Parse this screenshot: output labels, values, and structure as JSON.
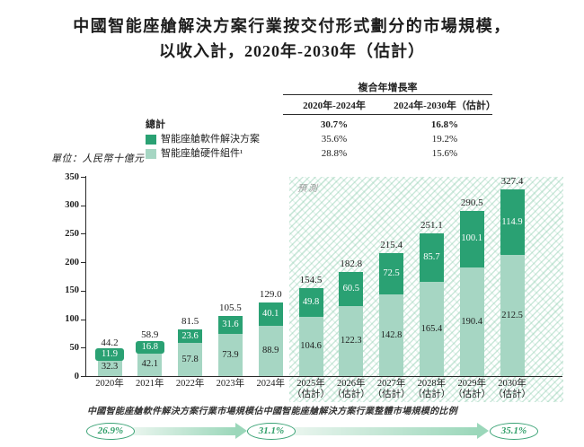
{
  "title": {
    "line1": "中國智能座艙解決方案行業按交付形式劃分的市場規模，",
    "line2": "以收入計，2020年-2030年（估計）"
  },
  "unit_label": "單位：人民幣十億元",
  "cagr_table": {
    "title": "複合年增長率",
    "columns": [
      "2020年-2024年",
      "2024年-2030年（估計）"
    ],
    "rows": [
      {
        "label": "總計",
        "swatch": null,
        "bold": true,
        "values": [
          "30.7%",
          "16.8%"
        ]
      },
      {
        "label": "智能座艙軟件解決方案",
        "swatch": "software",
        "bold": false,
        "values": [
          "35.6%",
          "19.2%"
        ]
      },
      {
        "label": "智能座艙硬件組件¹",
        "swatch": "hardware",
        "bold": false,
        "values": [
          "28.8%",
          "15.6%"
        ]
      }
    ]
  },
  "chart_data": {
    "type": "bar",
    "stacked": true,
    "title": "中國智能座艙解決方案行業按交付形式劃分的市場規模，以收入計，2020年-2030年（估計）",
    "ylabel": "人民幣十億元",
    "ylim": [
      0,
      350
    ],
    "yticks": [
      0,
      50,
      100,
      150,
      200,
      250,
      300,
      350
    ],
    "grid": false,
    "legend_position": "top-left",
    "categories": [
      "2020年",
      "2021年",
      "2022年",
      "2023年",
      "2024年",
      "2025年",
      "2026年",
      "2027年",
      "2028年",
      "2029年",
      "2030年"
    ],
    "estimate_suffix": "（估計）",
    "estimate_from_index": 5,
    "forecast_label": "預測",
    "total_legend_label": "總計",
    "series": [
      {
        "name": "智能座艙軟件解決方案",
        "color_key": "software",
        "values": [
          11.9,
          16.8,
          23.6,
          31.6,
          40.1,
          49.8,
          60.5,
          72.5,
          85.7,
          100.1,
          114.9
        ]
      },
      {
        "name": "智能座艙硬件組件¹",
        "color_key": "hardware",
        "values": [
          32.3,
          42.1,
          57.8,
          73.9,
          88.9,
          104.6,
          122.3,
          142.8,
          165.4,
          190.4,
          212.5
        ]
      }
    ],
    "totals": [
      44.2,
      58.9,
      81.5,
      105.5,
      129.0,
      154.5,
      182.8,
      215.4,
      251.1,
      290.5,
      327.4
    ]
  },
  "footnote": "中國智能座艙軟件解決方案行業市場規模佔中國智能座艙解決方案行業整體市場規模的比例",
  "share_arrow": {
    "values": [
      "26.9%",
      "31.1%",
      "35.1%"
    ]
  },
  "colors": {
    "software": "#2aa173",
    "hardware": "#a6d6c3",
    "accent_text": "#2f9e68",
    "arrow_light": "#e9f5ee",
    "arrow_dark": "#9bd7ba",
    "forecast_hatch": "#78c4a0"
  }
}
